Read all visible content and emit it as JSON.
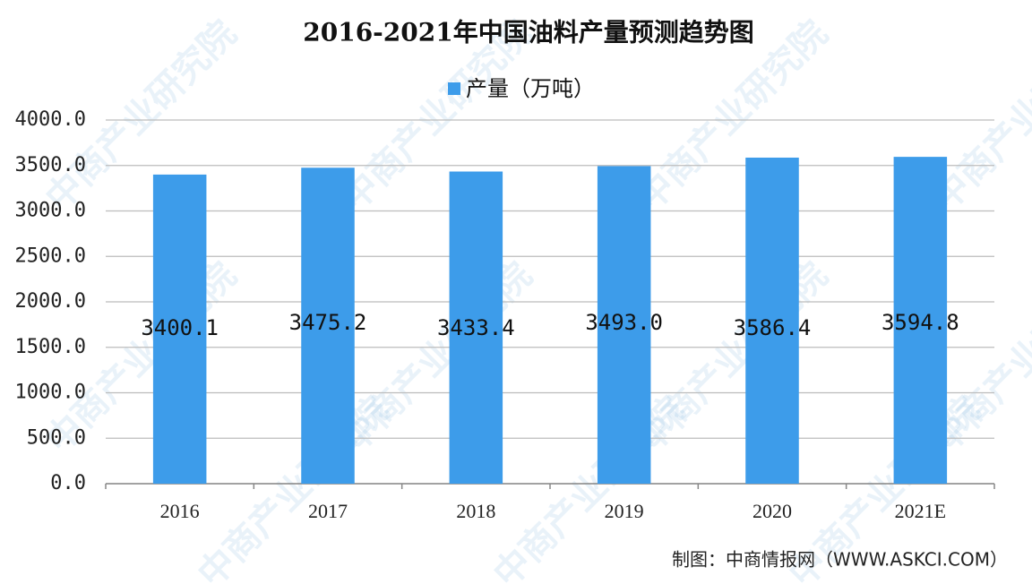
{
  "chart_data": {
    "type": "bar",
    "title": "2016-2021年中国油料产量预测趋势图",
    "categories": [
      "2016",
      "2017",
      "2018",
      "2019",
      "2020",
      "2021E"
    ],
    "series": [
      {
        "name": "产量（万吨）",
        "color": "#3d9cea",
        "values": [
          3400.1,
          3475.2,
          3433.4,
          3493.0,
          3586.4,
          3594.8
        ],
        "value_labels": [
          "3400.1",
          "3475.2",
          "3433.4",
          "3493.0",
          "3586.4",
          "3594.8"
        ]
      }
    ],
    "ylim": [
      0,
      4000
    ],
    "yticks": [
      {
        "value": 0,
        "label": "0.0"
      },
      {
        "value": 500,
        "label": "500.0"
      },
      {
        "value": 1000,
        "label": "1000.0"
      },
      {
        "value": 1500,
        "label": "1500.0"
      },
      {
        "value": 2000,
        "label": "2000.0"
      },
      {
        "value": 2500,
        "label": "2500.0"
      },
      {
        "value": 3000,
        "label": "3000.0"
      },
      {
        "value": 3500,
        "label": "3500.0"
      },
      {
        "value": 4000,
        "label": "4000.0"
      }
    ],
    "grid": true,
    "legend": "top",
    "source": "制图：中商情报网（WWW.ASKCI.COM）",
    "watermark": "中商产业研究院"
  }
}
